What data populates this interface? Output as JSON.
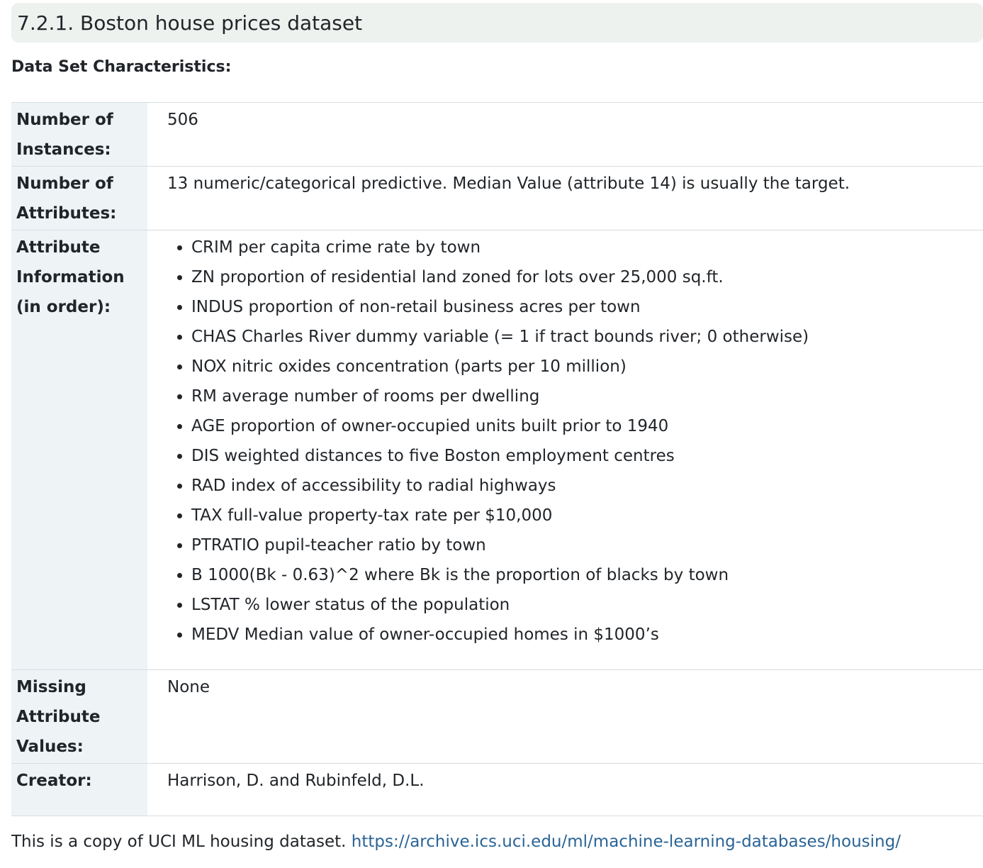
{
  "section": {
    "title": "7.2.1. Boston house prices dataset"
  },
  "characteristics": {
    "heading": "Data Set Characteristics:",
    "rows": {
      "instances": {
        "label_line1": "Number of",
        "label_line2": "Instances:",
        "value": "506"
      },
      "attributes": {
        "label_line1": "Number of",
        "label_line2": "Attributes:",
        "value": "13 numeric/categorical predictive. Median Value (attribute 14) is usually the target."
      },
      "attribute_info": {
        "label_line1": "Attribute",
        "label_line2": "Information",
        "label_line3": "(in order):",
        "items": [
          "CRIM per capita crime rate by town",
          "ZN proportion of residential land zoned for lots over 25,000 sq.ft.",
          "INDUS proportion of non-retail business acres per town",
          "CHAS Charles River dummy variable (= 1 if tract bounds river; 0 otherwise)",
          "NOX nitric oxides concentration (parts per 10 million)",
          "RM average number of rooms per dwelling",
          "AGE proportion of owner-occupied units built prior to 1940",
          "DIS weighted distances to five Boston employment centres",
          "RAD index of accessibility to radial highways",
          "TAX full-value property-tax rate per $10,000",
          "PTRATIO pupil-teacher ratio by town",
          "B 1000(Bk - 0.63)^2 where Bk is the proportion of blacks by town",
          "LSTAT % lower status of the population",
          "MEDV Median value of owner-occupied homes in $1000’s"
        ]
      },
      "missing": {
        "label_line1": "Missing",
        "label_line2": "Attribute",
        "label_line3": "Values:",
        "value": "None"
      },
      "creator": {
        "label": "Creator:",
        "value": "Harrison, D. and Rubinfeld, D.L."
      }
    }
  },
  "footer": {
    "text": "This is a copy of UCI ML housing dataset. ",
    "link_text": "https://archive.ics.uci.edu/ml/machine-learning-databases/housing/",
    "link_href": "https://archive.ics.uci.edu/ml/machine-learning-databases/housing/"
  }
}
